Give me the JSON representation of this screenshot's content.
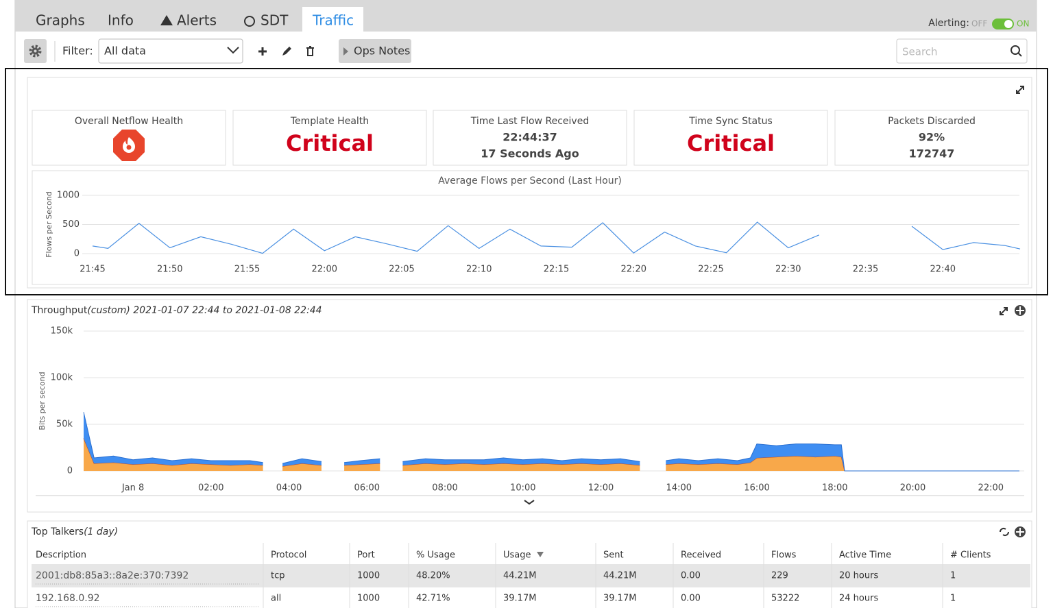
{
  "tabs": [
    {
      "label": "Graphs"
    },
    {
      "label": "Info"
    },
    {
      "label": "Alerts"
    },
    {
      "label": "SDT"
    },
    {
      "label": "Traffic",
      "active": true
    }
  ],
  "alerting": {
    "label": "Alerting:",
    "off": "OFF",
    "on": "ON"
  },
  "toolbar": {
    "filter_label": "Filter:",
    "filter_value": "All data",
    "ops_notes": "Ops Notes",
    "search_placeholder": "Search"
  },
  "cards": [
    {
      "title": "Overall Netflow Health"
    },
    {
      "title": "Template Health",
      "status": "Critical"
    },
    {
      "title": "Time Last Flow Received",
      "lines": [
        "22:44:37",
        "17 Seconds Ago"
      ]
    },
    {
      "title": "Time Sync Status",
      "status": "Critical"
    },
    {
      "title": "Packets Discarded",
      "lines": [
        "92%",
        "172747"
      ]
    }
  ],
  "chart_data": [
    {
      "type": "line",
      "title": "Average Flows per Second (Last Hour)",
      "y_label": "Flows per Second",
      "x": [
        "21:45",
        "21:46",
        "21:48",
        "21:50",
        "21:52",
        "21:54",
        "21:56",
        "21:58",
        "22:00",
        "22:02",
        "22:04",
        "22:06",
        "22:08",
        "22:10",
        "22:12",
        "22:14",
        "22:16",
        "22:18",
        "22:20",
        "22:22",
        "22:24",
        "22:26",
        "22:28",
        "22:30",
        "22:32",
        "22:34",
        "22:36",
        "22:38",
        "22:40",
        "22:42",
        "22:44",
        "22:45"
      ],
      "series": [
        {
          "color": "#4a90e2",
          "values": [
            130,
            90,
            520,
            100,
            290,
            160,
            5,
            420,
            50,
            290,
            170,
            40,
            480,
            90,
            420,
            130,
            110,
            530,
            10,
            370,
            130,
            15,
            540,
            100,
            320,
            null,
            null,
            470,
            70,
            190,
            140,
            80
          ]
        }
      ],
      "xlim": [
        "21:45",
        "22:45"
      ],
      "xticks": [
        "21:45",
        "21:50",
        "21:55",
        "22:00",
        "22:05",
        "22:10",
        "22:15",
        "22:20",
        "22:25",
        "22:30",
        "22:35",
        "22:40"
      ],
      "ylim": [
        0,
        1000
      ],
      "yticks": [
        0,
        500,
        1000
      ],
      "grid": true
    },
    {
      "type": "stacked-area",
      "title": "Throughput",
      "subtitle": "(custom) 2021-01-07 22:44 to 2021-01-08 22:44",
      "y_label": "Bits per second",
      "x": [
        "2021-01-07 22:44",
        "2021-01-07 23:00",
        "2021-01-07 23:30",
        "2021-01-08 00:00",
        "2021-01-08 00:30",
        "2021-01-08 01:00",
        "2021-01-08 01:30",
        "2021-01-08 02:00",
        "2021-01-08 02:30",
        "2021-01-08 03:00",
        "2021-01-08 03:20",
        "2021-01-08 03:35",
        "2021-01-08 03:50",
        "2021-01-08 04:20",
        "2021-01-08 04:50",
        "2021-01-08 05:05",
        "2021-01-08 05:25",
        "2021-01-08 05:50",
        "2021-01-08 06:20",
        "2021-01-08 06:40",
        "2021-01-08 06:55",
        "2021-01-08 07:30",
        "2021-01-08 08:00",
        "2021-01-08 08:30",
        "2021-01-08 09:00",
        "2021-01-08 09:30",
        "2021-01-08 10:00",
        "2021-01-08 10:30",
        "2021-01-08 11:00",
        "2021-01-08 11:30",
        "2021-01-08 12:00",
        "2021-01-08 12:30",
        "2021-01-08 13:00",
        "2021-01-08 13:20",
        "2021-01-08 13:40",
        "2021-01-08 14:00",
        "2021-01-08 14:30",
        "2021-01-08 15:00",
        "2021-01-08 15:30",
        "2021-01-08 15:50",
        "2021-01-08 16:00",
        "2021-01-08 16:30",
        "2021-01-08 17:00",
        "2021-01-08 17:30",
        "2021-01-08 18:00",
        "2021-01-08 18:10",
        "2021-01-08 18:15",
        "2021-01-08 19:00",
        "2021-01-08 20:00",
        "2021-01-08 21:00",
        "2021-01-08 22:00",
        "2021-01-08 22:44"
      ],
      "series": [
        {
          "color": "#f8a84a",
          "values": [
            35000,
            8000,
            9000,
            7000,
            8000,
            6000,
            8000,
            7000,
            6000,
            7000,
            6000,
            null,
            5000,
            8000,
            6000,
            null,
            6000,
            7000,
            8000,
            null,
            6000,
            8000,
            7000,
            8000,
            7000,
            8000,
            7000,
            8000,
            7000,
            8000,
            7000,
            8000,
            6000,
            null,
            7000,
            8000,
            7000,
            8000,
            7000,
            9000,
            14000,
            15000,
            16000,
            15000,
            16000,
            15000,
            0,
            0,
            0,
            0,
            0,
            0
          ]
        },
        {
          "color": "#3f8ef2",
          "values": [
            28000,
            6000,
            7000,
            5000,
            6000,
            5000,
            5000,
            4000,
            5000,
            4000,
            3000,
            null,
            3000,
            5000,
            4000,
            null,
            3000,
            4000,
            5000,
            null,
            4000,
            5000,
            5000,
            4000,
            5000,
            6000,
            5000,
            5000,
            4000,
            5000,
            5000,
            5000,
            4000,
            null,
            4000,
            5000,
            4000,
            5000,
            4000,
            5000,
            15000,
            12000,
            13000,
            14000,
            12000,
            13000,
            0,
            0,
            0,
            0,
            0,
            0
          ]
        }
      ],
      "xlim": [
        "2021-01-07 22:44",
        "2021-01-08 22:44"
      ],
      "xticks": [
        {
          "value": "2021-01-08 00:00",
          "label": "Jan 8"
        },
        {
          "value": "2021-01-08 02:00",
          "label": "02:00"
        },
        {
          "value": "2021-01-08 04:00",
          "label": "04:00"
        },
        {
          "value": "2021-01-08 06:00",
          "label": "06:00"
        },
        {
          "value": "2021-01-08 08:00",
          "label": "08:00"
        },
        {
          "value": "2021-01-08 10:00",
          "label": "10:00"
        },
        {
          "value": "2021-01-08 12:00",
          "label": "12:00"
        },
        {
          "value": "2021-01-08 14:00",
          "label": "14:00"
        },
        {
          "value": "2021-01-08 16:00",
          "label": "16:00"
        },
        {
          "value": "2021-01-08 18:00",
          "label": "18:00"
        },
        {
          "value": "2021-01-08 20:00",
          "label": "20:00"
        },
        {
          "value": "2021-01-08 22:00",
          "label": "22:00"
        }
      ],
      "ylim": [
        0,
        150000
      ],
      "yticks": [
        0,
        {
          "value": 50000,
          "label": "50k"
        },
        {
          "value": 100000,
          "label": "100k"
        },
        {
          "value": 150000,
          "label": "150k"
        }
      ],
      "grid": true
    }
  ],
  "table": {
    "title": "Top Talkers",
    "subtitle": "(1 day)",
    "columns": [
      "Description",
      "Protocol",
      "Port",
      "% Usage",
      "Usage",
      "Sent",
      "Received",
      "Flows",
      "Active Time",
      "# Clients"
    ],
    "rows": [
      [
        "2001:db8:85a3::8a2e:370:7392",
        "tcp",
        "1000",
        "48.20%",
        "44.21M",
        "44.21M",
        "0.00",
        "229",
        "20 hours",
        "1"
      ],
      [
        "192.168.0.92",
        "all",
        "1000",
        "42.71%",
        "39.17M",
        "39.17M",
        "0.00",
        "53222",
        "24 hours",
        "1"
      ]
    ]
  }
}
